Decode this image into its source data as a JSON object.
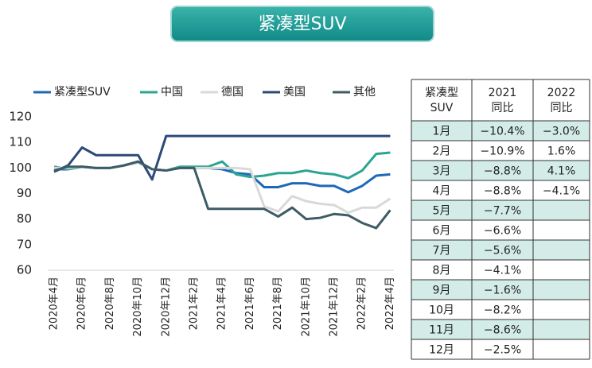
{
  "banner": {
    "title": "紧凑型SUV"
  },
  "chart_data": {
    "type": "line",
    "categories": [
      "2020年4月",
      null,
      "2020年6月",
      null,
      "2020年8月",
      null,
      "2020年10月",
      null,
      "2020年12月",
      null,
      "2021年2月",
      null,
      "2021年4月",
      null,
      "2021年6月",
      null,
      "2021年8月",
      null,
      "2021年10月",
      null,
      "2021年12月",
      null,
      "2022年2月",
      null,
      "2022年4月"
    ],
    "series": [
      {
        "name": "紧凑型SUV",
        "color": "#1f68b8",
        "values": [
          99.5,
          99.5,
          100.5,
          100,
          100,
          101,
          102.5,
          99.5,
          99,
          100,
          100,
          100,
          99.5,
          98,
          97.5,
          92.5,
          92.5,
          94,
          94,
          93,
          93,
          90.5,
          93,
          97,
          97.5
        ]
      },
      {
        "name": "中国",
        "color": "#2ba591",
        "values": [
          100.5,
          99.5,
          100.5,
          100,
          100,
          101,
          102.5,
          99.5,
          99,
          100.5,
          100.5,
          100.5,
          102.5,
          97.5,
          96.5,
          97,
          98,
          98,
          99,
          98,
          97.5,
          96,
          99,
          105.5,
          106
        ]
      },
      {
        "name": "德国",
        "color": "#d9d9d9",
        "values": [
          100,
          100,
          100.5,
          100,
          100,
          101,
          102,
          99.5,
          99,
          100,
          100,
          100,
          100,
          100,
          99.5,
          85,
          83,
          89,
          87,
          86,
          85.5,
          82.5,
          84.5,
          84.5,
          88
        ]
      },
      {
        "name": "美国",
        "color": "#2c4a78",
        "values": [
          98.5,
          101,
          108,
          105,
          105,
          105,
          105,
          95.5,
          112.5,
          112.5,
          112.5,
          112.5,
          112.5,
          112.5,
          112.5,
          112.5,
          112.5,
          112.5,
          112.5,
          112.5,
          112.5,
          112.5,
          112.5,
          112.5,
          112.5
        ]
      },
      {
        "name": "其他",
        "color": "#3e5b66",
        "values": [
          99,
          100.5,
          100.5,
          100,
          100,
          101,
          102.5,
          99.5,
          99,
          100,
          100,
          84,
          84,
          84,
          84,
          84,
          81,
          84.5,
          80,
          80.5,
          82,
          81.5,
          78.5,
          76.5,
          83.5
        ]
      }
    ],
    "ylim": [
      60,
      120
    ],
    "yticks": [
      60,
      70,
      80,
      90,
      100,
      110,
      120
    ],
    "grid": false,
    "legend": "top"
  },
  "table": {
    "header": [
      [
        "紧凑型",
        "SUV"
      ],
      [
        "2021",
        "同比"
      ],
      [
        "2022",
        "同比"
      ]
    ],
    "rows": [
      [
        "1月",
        "−10.4%",
        "−3.0%"
      ],
      [
        "2月",
        "−10.9%",
        "1.6%"
      ],
      [
        "3月",
        "−8.8%",
        "4.1%"
      ],
      [
        "4月",
        "−8.8%",
        "−4.1%"
      ],
      [
        "5月",
        "−7.7%"
      ],
      [
        "6月",
        "−6.6%"
      ],
      [
        "7月",
        "−5.6%"
      ],
      [
        "8月",
        "−4.1%"
      ],
      [
        "9月",
        "−1.6%"
      ],
      [
        "10月",
        "−8.2%"
      ],
      [
        "11月",
        "−8.6%"
      ],
      [
        "12月",
        "−2.5%"
      ]
    ]
  }
}
